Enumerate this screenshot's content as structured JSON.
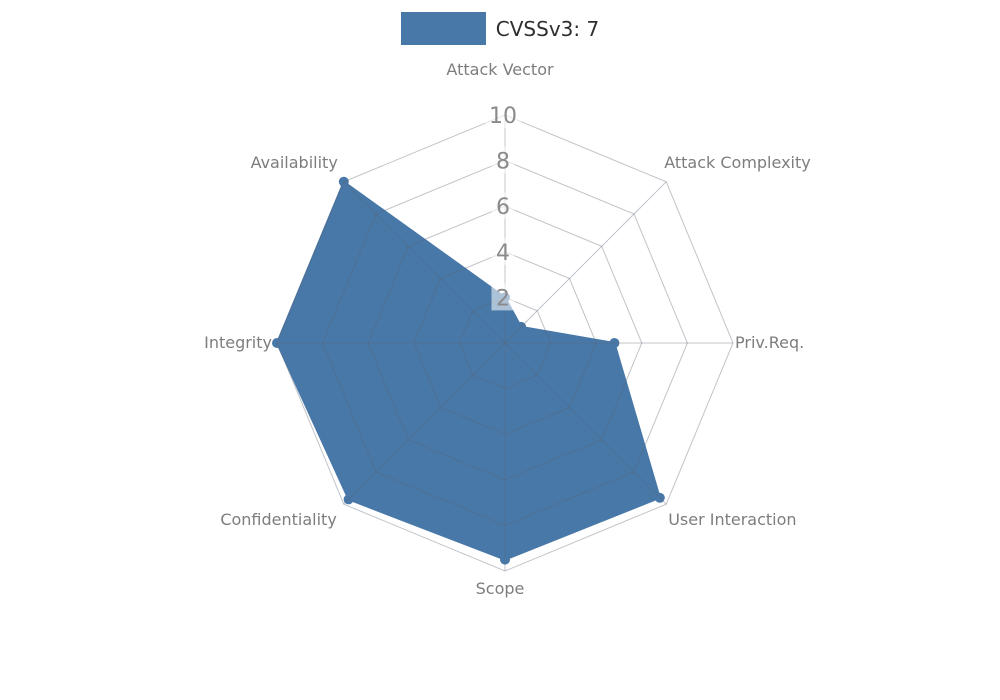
{
  "legend": {
    "label": "CVSSv3: 7",
    "swatch_color": "#4878a8"
  },
  "chart_data": {
    "type": "radar",
    "title": "CVSSv3: 7",
    "categories": [
      "Attack Vector",
      "Attack Complexity",
      "Priv.Req.",
      "User Interaction",
      "Scope",
      "Confidentiality",
      "Integrity",
      "Availability"
    ],
    "series": [
      {
        "name": "CVSSv3: 7",
        "values": [
          2,
          1,
          4.8,
          9.6,
          9.5,
          9.7,
          10,
          10
        ]
      }
    ],
    "ticks": [
      2,
      4,
      6,
      8,
      10
    ],
    "rmax": 10,
    "grid": "on",
    "legend_position": "top-center",
    "fill_color": "#4878a8",
    "grid_color_rgba": "rgba(90,100,115,0.38)",
    "tick_color": "#8a8a8a",
    "label_color": "#7d7d7d"
  }
}
